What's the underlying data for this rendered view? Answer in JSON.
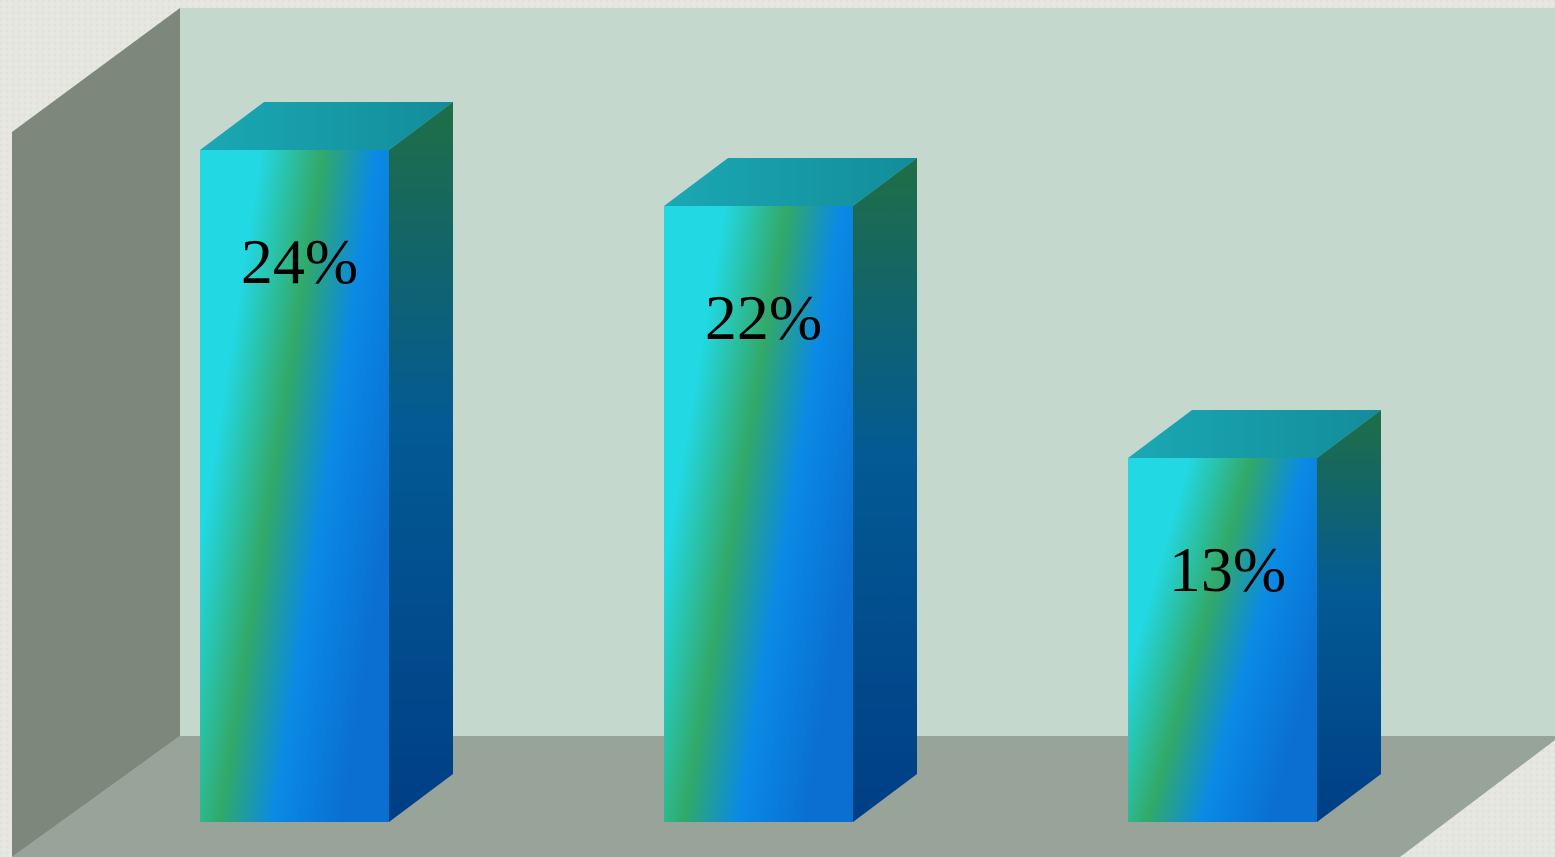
{
  "chart_data": {
    "type": "bar",
    "style": "3d",
    "title": "",
    "xlabel": "",
    "ylabel": "",
    "categories": [
      "",
      "",
      ""
    ],
    "values": [
      24,
      22,
      13
    ],
    "value_unit": "%",
    "data_labels": [
      "24%",
      "22%",
      "13%"
    ],
    "ylim": [
      0,
      28
    ],
    "grid": false,
    "legend": "none"
  },
  "colors": {
    "page_background": "#e6e6e0",
    "back_wall": "#c5d8ce",
    "side_wall": "#7d877c",
    "floor": "#98a399",
    "bar_front_light": "#22d8e2",
    "bar_front_mid": "#32a968",
    "bar_front_blue": "#0a8ae6",
    "bar_side_top": "#1f6e45",
    "bar_side_bottom": "#003e86",
    "bar_top": "#179aa9",
    "label_text": "#000000"
  }
}
